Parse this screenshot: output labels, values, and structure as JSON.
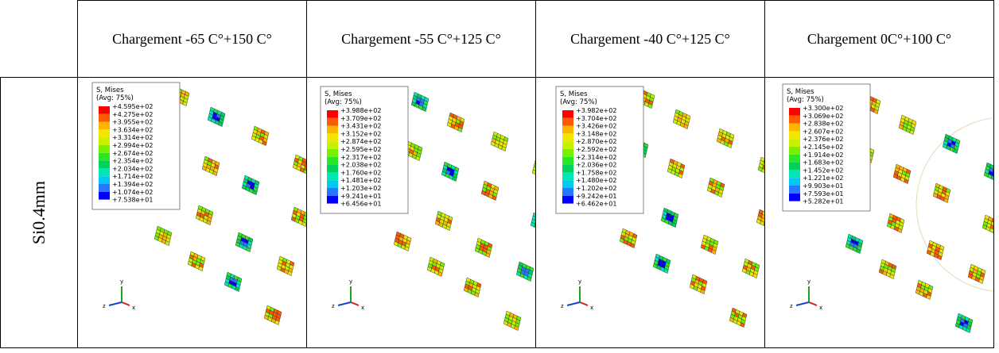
{
  "header": {
    "columns": [
      "Chargement -65 C°+150 C°",
      "Chargement -55 C°+125 C°",
      "Chargement -40 C°+125 C°",
      "Chargement 0C°+100 C°"
    ]
  },
  "row_label": "Si0.4mm",
  "legend_colors": [
    "#ff0000",
    "#ff5a00",
    "#ffb400",
    "#f0e600",
    "#c8f000",
    "#78f000",
    "#28e628",
    "#00d25a",
    "#00e6b4",
    "#00c8f0",
    "#2878ff",
    "#0000ff"
  ],
  "axis_labels": [
    "y",
    "z",
    "x"
  ],
  "panels": [
    {
      "legend_title": "S, Mises",
      "legend_subtitle": "(Avg: 75%)",
      "legend_values": [
        "+4.595e+02",
        "+4.275e+02",
        "+3.955e+02",
        "+3.634e+02",
        "+3.314e+02",
        "+2.994e+02",
        "+2.674e+02",
        "+2.354e+02",
        "+2.034e+02",
        "+1.714e+02",
        "+1.394e+02",
        "+1.074e+02",
        "+7.538e+01"
      ]
    },
    {
      "legend_title": "S, Mises",
      "legend_subtitle": "(Avg: 75%)",
      "legend_values": [
        "+3.988e+02",
        "+3.709e+02",
        "+3.431e+02",
        "+3.152e+02",
        "+2.874e+02",
        "+2.595e+02",
        "+2.317e+02",
        "+2.038e+02",
        "+1.760e+02",
        "+1.481e+02",
        "+1.203e+02",
        "+9.241e+01",
        "+6.456e+01"
      ]
    },
    {
      "legend_title": "S, Mises",
      "legend_subtitle": "(Avg: 75%)",
      "legend_values": [
        "+3.982e+02",
        "+3.704e+02",
        "+3.426e+02",
        "+3.148e+02",
        "+2.870e+02",
        "+2.592e+02",
        "+2.314e+02",
        "+2.036e+02",
        "+1.758e+02",
        "+1.480e+02",
        "+1.202e+02",
        "+9.242e+01",
        "+6.462e+01"
      ]
    },
    {
      "legend_title": "S, Mises",
      "legend_subtitle": "(Avg: 75%)",
      "legend_values": [
        "+3.300e+02",
        "+3.069e+02",
        "+2.838e+02",
        "+2.607e+02",
        "+2.376e+02",
        "+2.145e+02",
        "+1.914e+02",
        "+1.683e+02",
        "+1.452e+02",
        "+1.221e+02",
        "+9.903e+01",
        "+7.593e+01",
        "+5.282e+01"
      ]
    }
  ]
}
